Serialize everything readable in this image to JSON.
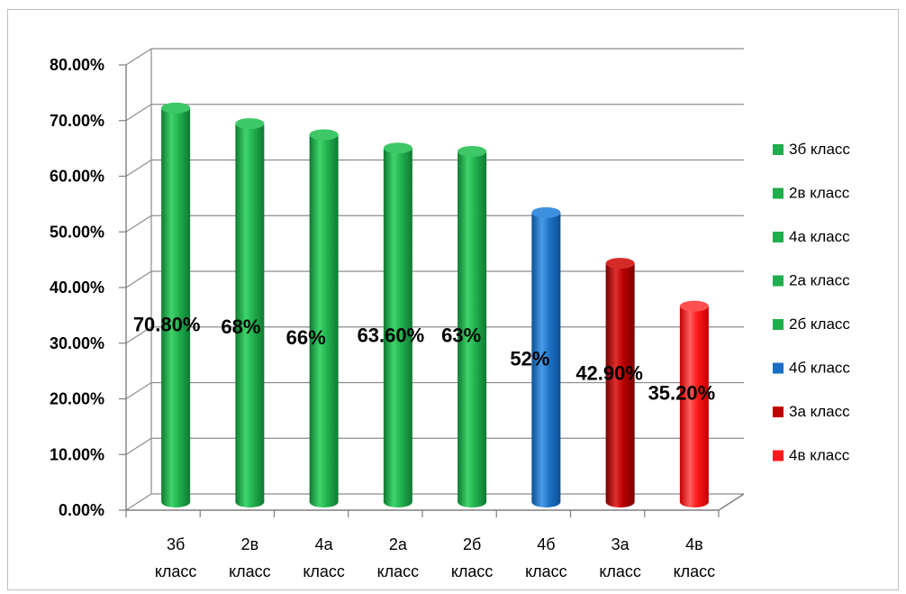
{
  "chart_data": {
    "type": "bar",
    "categories": [
      "3б класс",
      "2в класс",
      "4а класс",
      "2а класс",
      "2б класс",
      "4б класс",
      "3а класс",
      "4в класс"
    ],
    "category_lines": [
      [
        "3б",
        "класс"
      ],
      [
        "2в",
        "класс"
      ],
      [
        "4а",
        "класс"
      ],
      [
        "2а",
        "класс"
      ],
      [
        "2б",
        "класс"
      ],
      [
        "4б",
        "класс"
      ],
      [
        "3а",
        "класс"
      ],
      [
        "4в",
        "класс"
      ]
    ],
    "values": [
      70.8,
      68,
      66,
      63.6,
      63,
      52,
      42.9,
      35.2
    ],
    "data_labels": [
      "70.80%",
      "68%",
      "66%",
      "63.60%",
      "63%",
      "52%",
      "42.90%",
      "35.20%"
    ],
    "colors": [
      "#1fae4b",
      "#1fae4b",
      "#1fae4b",
      "#1fae4b",
      "#1fae4b",
      "#1a6fc4",
      "#c00000",
      "#ff1a1a"
    ],
    "yticks": [
      "0.00%",
      "10.00%",
      "20.00%",
      "30.00%",
      "40.00%",
      "50.00%",
      "60.00%",
      "70.00%",
      "80.00%"
    ],
    "ylim": [
      0,
      80
    ],
    "ystep": 10,
    "grid": true,
    "legend_position": "right",
    "legend": [
      "3б класс",
      "2в класс",
      "4а класс",
      "2а класс",
      "2б класс",
      "4б класс",
      "3а класс",
      "4в класс"
    ],
    "title": "",
    "xlabel": "",
    "ylabel": ""
  }
}
